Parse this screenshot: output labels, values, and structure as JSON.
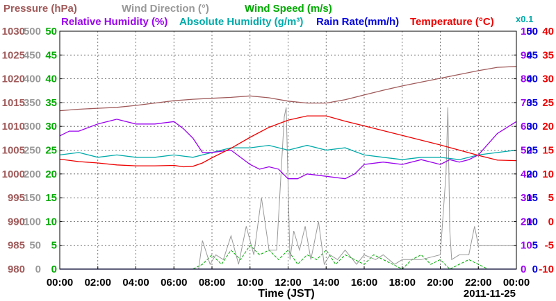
{
  "chart_data": {
    "type": "line",
    "legend": {
      "row1": [
        {
          "text": "Pressure (hPa)",
          "color": "#a05a5a"
        },
        {
          "text": "Wind Direction (°)",
          "color": "#999999"
        },
        {
          "text": "Wind Speed (m/s)",
          "color": "#00aa00"
        }
      ],
      "row2": [
        {
          "text": "Relative Humidity (%)",
          "color": "#9900ee"
        },
        {
          "text": "Absolute Humidity (g/m³)",
          "color": "#00aaaa"
        },
        {
          "text": "Rain Rate(mm/h)",
          "color": "#0000dd"
        },
        {
          "text": "Temperature (°C)",
          "color": "#ee0000"
        }
      ],
      "abs_hum_scale": "x0.1"
    },
    "xlabel": "Time (JST)",
    "date": "2011-11-25",
    "x_ticks": [
      "00:00",
      "02:00",
      "04:00",
      "06:00",
      "08:00",
      "10:00",
      "12:00",
      "14:00",
      "16:00",
      "18:00",
      "20:00",
      "22:00",
      "00:00"
    ],
    "xlim_hours": [
      0,
      24
    ],
    "y_axes": {
      "pressure": {
        "ticks": [
          "1030",
          "1025",
          "1020",
          "1015",
          "1010",
          "1005",
          "1000",
          "995",
          "990",
          "985",
          "980"
        ],
        "range": [
          980,
          1030
        ],
        "color": "#a05a5a"
      },
      "wind_dir": {
        "ticks": [
          "500",
          "450",
          "400",
          "350",
          "300",
          "250",
          "200",
          "150",
          "100",
          "50",
          "0"
        ],
        "range": [
          0,
          500
        ],
        "color": "#999999"
      },
      "wind_speed": {
        "ticks": [
          "50",
          "45",
          "40",
          "35",
          "30",
          "25",
          "20",
          "15",
          "10",
          "5",
          "0"
        ],
        "range": [
          0,
          50
        ],
        "color": "#00aa00"
      },
      "humidity": {
        "ticks": [
          "100",
          "90",
          "80",
          "70",
          "60",
          "50",
          "40",
          "30",
          "20",
          "10",
          "0"
        ],
        "range": [
          0,
          100
        ],
        "color": "#9900ee"
      },
      "rain": {
        "ticks": [
          "50",
          "45",
          "40",
          "35",
          "30",
          "25",
          "20",
          "15",
          "10",
          "5",
          "0"
        ],
        "range": [
          0,
          50
        ],
        "color": "#0000dd"
      },
      "temperature": {
        "ticks": [
          "40",
          "35",
          "30",
          "25",
          "20",
          "15",
          "10",
          "5",
          "0",
          "-5",
          "-10"
        ],
        "range": [
          -10,
          40
        ],
        "color": "#ee0000"
      }
    },
    "series": [
      {
        "name": "Pressure (hPa)",
        "color": "#a05a5a",
        "x": [
          0,
          1,
          2,
          3,
          4,
          5,
          6,
          7,
          8,
          9,
          10,
          11,
          12,
          13,
          14,
          15,
          16,
          17,
          18,
          19,
          20,
          21,
          22,
          23,
          24
        ],
        "y": [
          1013.3,
          1013.6,
          1013.8,
          1014.0,
          1014.4,
          1014.9,
          1015.4,
          1015.7,
          1015.9,
          1016.1,
          1016.4,
          1016.0,
          1015.3,
          1014.9,
          1014.9,
          1015.6,
          1016.6,
          1017.6,
          1018.5,
          1019.3,
          1020.1,
          1020.9,
          1021.7,
          1022.4,
          1022.6
        ]
      },
      {
        "name": "Temperature (°C)",
        "color": "#ee0000",
        "x": [
          0,
          1,
          2,
          3,
          4,
          5,
          6,
          6.5,
          7,
          7.5,
          8,
          9,
          10,
          11,
          12,
          13,
          14,
          15,
          16,
          17,
          18,
          19,
          20,
          21,
          22,
          23,
          24
        ],
        "y": [
          13.1,
          12.6,
          12.3,
          11.9,
          11.7,
          11.7,
          11.8,
          11.5,
          11.6,
          12.3,
          13.4,
          15.4,
          17.7,
          19.8,
          21.3,
          22.2,
          22.2,
          21.1,
          20.1,
          19.1,
          18.1,
          17.1,
          16.1,
          15.0,
          13.9,
          12.9,
          12.8
        ]
      },
      {
        "name": "Relative Humidity (%)",
        "color": "#9900ee",
        "x": [
          0,
          0.5,
          1,
          2,
          3,
          4,
          5,
          6,
          6.5,
          7,
          7.5,
          8,
          9,
          10,
          10.5,
          11,
          11.5,
          12,
          12.5,
          13,
          14,
          15,
          15.5,
          16,
          17,
          18,
          19,
          20,
          20.5,
          21,
          21.5,
          22,
          23,
          24
        ],
        "y": [
          56,
          58,
          58,
          61,
          63,
          61,
          61,
          62,
          59,
          55,
          49,
          49,
          50,
          44,
          42,
          43,
          42,
          38,
          38,
          40,
          39,
          38,
          40,
          44,
          45,
          44,
          46,
          44,
          46,
          45,
          46,
          48,
          57,
          62
        ]
      },
      {
        "name": "Absolute Humidity (g/m³)",
        "color": "#00aaaa",
        "x": [
          0,
          1,
          2,
          3,
          4,
          5,
          6,
          7,
          8,
          9,
          10,
          11,
          12,
          13,
          14,
          15,
          16,
          17,
          18,
          19,
          20,
          21,
          22,
          23,
          24
        ],
        "y": [
          48,
          49,
          47,
          48,
          47,
          47,
          48,
          47,
          49,
          51,
          51,
          52,
          50,
          52,
          50,
          51,
          48,
          47,
          46,
          47,
          47,
          46,
          48,
          49,
          50
        ]
      },
      {
        "name": "Wind Direction (°)",
        "color": "#999999",
        "x": [
          0,
          7.3,
          7.5,
          7.9,
          8.2,
          8.6,
          9.0,
          9.4,
          9.8,
          10.2,
          10.6,
          11.0,
          11.4,
          11.8,
          11.9,
          12.0,
          12.1,
          12.3,
          12.6,
          12.9,
          13.2,
          13.6,
          13.9,
          14.2,
          14.6,
          15.0,
          15.6,
          16.0,
          16.6,
          17.0,
          17.6,
          18.0,
          19.0,
          20.0,
          20.3,
          20.4,
          20.5,
          20.6,
          21.0,
          21.5,
          21.8,
          22.0,
          23.0,
          24.0
        ],
        "y": [
          0,
          0,
          60,
          10,
          30,
          20,
          70,
          10,
          90,
          30,
          150,
          40,
          40,
          320,
          340,
          180,
          20,
          80,
          40,
          90,
          20,
          100,
          10,
          30,
          20,
          40,
          10,
          30,
          20,
          30,
          10,
          20,
          20,
          30,
          200,
          340,
          80,
          20,
          30,
          30,
          90,
          50,
          50,
          50
        ]
      },
      {
        "name": "Wind Speed (m/s)",
        "color": "#00aa00",
        "x": [
          0,
          7.0,
          7.5,
          8.0,
          8.5,
          9.0,
          9.5,
          10.0,
          10.5,
          11.0,
          11.5,
          12.0,
          12.5,
          13.0,
          13.5,
          14.0,
          14.5,
          15.0,
          15.5,
          16.0,
          16.5,
          17.0,
          17.5,
          18.0,
          18.5,
          19.0,
          19.5,
          20.0,
          20.5,
          21.0,
          21.5,
          22.0,
          22.5,
          23.0,
          24.0
        ],
        "y": [
          0,
          0,
          1,
          3,
          1,
          4,
          2,
          5,
          3,
          4,
          2,
          4,
          1,
          3,
          2,
          4,
          1,
          3,
          2,
          1,
          3,
          2,
          1,
          0,
          2,
          3,
          1,
          2,
          0,
          1,
          2,
          1,
          0,
          0,
          0
        ]
      },
      {
        "name": "Rain Rate(mm/h)",
        "color": "#0000dd",
        "x": [
          0,
          24
        ],
        "y": [
          0,
          0
        ]
      }
    ]
  }
}
